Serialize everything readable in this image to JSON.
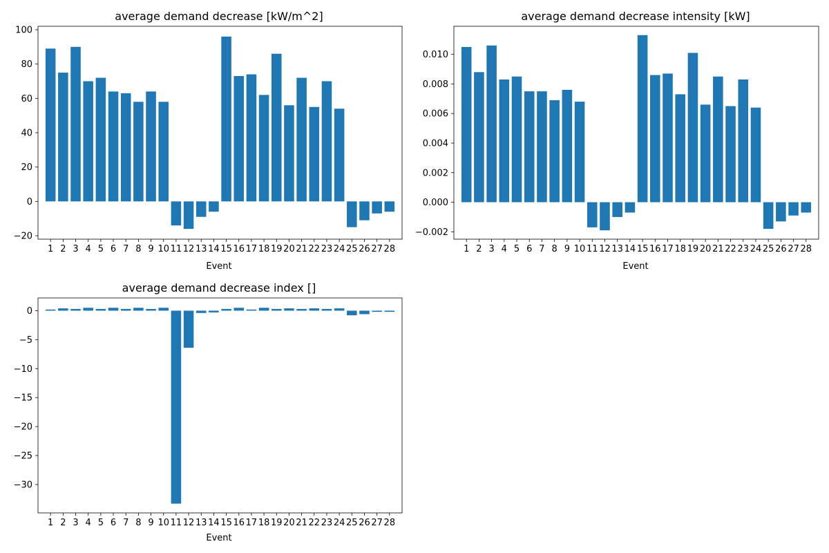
{
  "chart_data": [
    {
      "type": "bar",
      "title": "average demand decrease [kW/m^2]",
      "xlabel": "Event",
      "ylabel": "",
      "categories": [
        "1",
        "2",
        "3",
        "4",
        "5",
        "6",
        "7",
        "8",
        "9",
        "10",
        "11",
        "12",
        "13",
        "14",
        "15",
        "16",
        "17",
        "18",
        "19",
        "20",
        "21",
        "22",
        "23",
        "24",
        "25",
        "26",
        "27",
        "28"
      ],
      "values": [
        89,
        75,
        90,
        70,
        72,
        64,
        63,
        58,
        64,
        58,
        -14,
        -16,
        -9,
        -6,
        96,
        73,
        74,
        62,
        86,
        56,
        72,
        55,
        70,
        54,
        -15,
        -11,
        -7,
        -6
      ],
      "ylim": [
        -22,
        102
      ],
      "yticks": [
        -20,
        0,
        20,
        40,
        60,
        80,
        100
      ],
      "ytick_labels": [
        "−20",
        "0",
        "20",
        "40",
        "60",
        "80",
        "100"
      ],
      "color": "#1f77b4",
      "grid": false
    },
    {
      "type": "bar",
      "title": "average demand decrease intensity [kW]",
      "xlabel": "Event",
      "ylabel": "",
      "categories": [
        "1",
        "2",
        "3",
        "4",
        "5",
        "6",
        "7",
        "8",
        "9",
        "10",
        "11",
        "12",
        "13",
        "14",
        "15",
        "16",
        "17",
        "18",
        "19",
        "20",
        "21",
        "22",
        "23",
        "24",
        "25",
        "26",
        "27",
        "28"
      ],
      "values": [
        0.0105,
        0.0088,
        0.0106,
        0.0083,
        0.0085,
        0.0075,
        0.0075,
        0.0069,
        0.0076,
        0.0068,
        -0.0017,
        -0.0019,
        -0.001,
        -0.0007,
        0.0113,
        0.0086,
        0.0087,
        0.0073,
        0.0101,
        0.0066,
        0.0085,
        0.0065,
        0.0083,
        0.0064,
        -0.0018,
        -0.0013,
        -0.0009,
        -0.0007
      ],
      "ylim": [
        -0.0025,
        0.0119
      ],
      "yticks": [
        -0.002,
        0,
        0.002,
        0.004,
        0.006,
        0.008,
        0.01
      ],
      "ytick_labels": [
        "−0.002",
        "0.000",
        "0.002",
        "0.004",
        "0.006",
        "0.008",
        "0.010"
      ],
      "color": "#1f77b4",
      "grid": false
    },
    {
      "type": "bar",
      "title": "average demand decrease index []",
      "xlabel": "Event",
      "ylabel": "",
      "categories": [
        "1",
        "2",
        "3",
        "4",
        "5",
        "6",
        "7",
        "8",
        "9",
        "10",
        "11",
        "12",
        "13",
        "14",
        "15",
        "16",
        "17",
        "18",
        "19",
        "20",
        "21",
        "22",
        "23",
        "24",
        "25",
        "26",
        "27",
        "28"
      ],
      "values": [
        0.2,
        0.4,
        0.3,
        0.5,
        0.3,
        0.5,
        0.3,
        0.5,
        0.3,
        0.5,
        -33.3,
        -6.4,
        -0.4,
        -0.3,
        0.3,
        0.5,
        0.2,
        0.5,
        0.3,
        0.4,
        0.3,
        0.4,
        0.3,
        0.4,
        -0.8,
        -0.6,
        -0.2,
        -0.2
      ],
      "ylim": [
        -34.9,
        2.2
      ],
      "yticks": [
        -30,
        -25,
        -20,
        -15,
        -10,
        -5,
        0
      ],
      "ytick_labels": [
        "−30",
        "−25",
        "−20",
        "−15",
        "−10",
        "−5",
        "0"
      ],
      "color": "#1f77b4",
      "grid": false
    }
  ]
}
